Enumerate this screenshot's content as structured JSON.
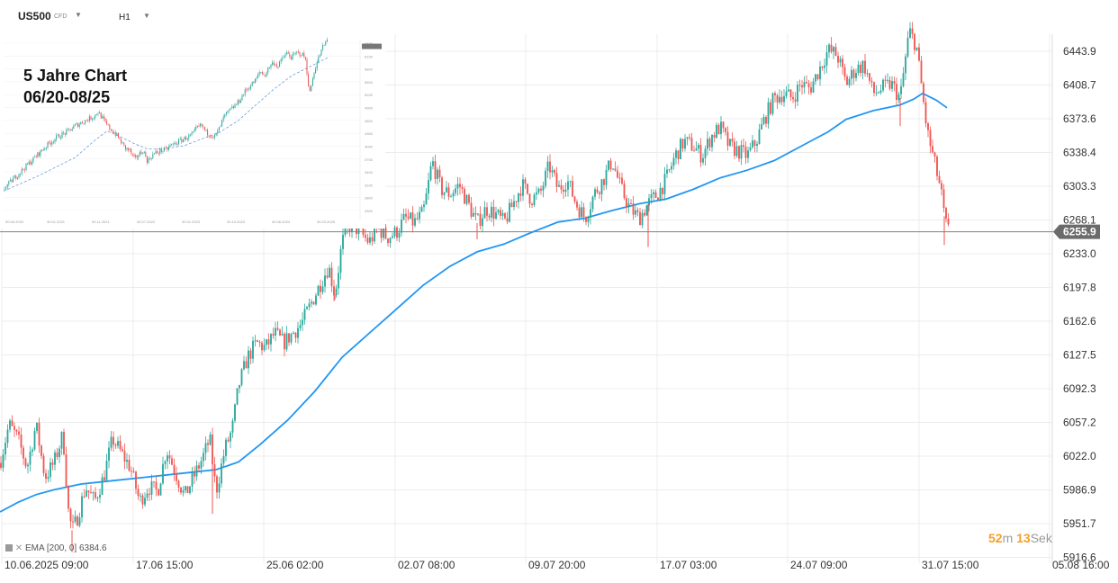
{
  "header": {
    "symbol": "US500",
    "instrument_type": "CFD",
    "timeframe": "H1"
  },
  "inset": {
    "title_line1": "5 Jahre Chart",
    "title_line2": "06/20-08/25"
  },
  "indicator_label": "EMA [200, 0] 6384.6",
  "timer": {
    "minutes": "52",
    "m_unit": "m",
    "seconds": "13",
    "s_unit": "Sek"
  },
  "colors": {
    "up": "#26a69a",
    "down": "#ef5350",
    "ema": "#2196f3",
    "price_line": "#808080",
    "price_tag": "#6b6b6b"
  },
  "chart_data": {
    "type": "candlestick",
    "title": "US500 CFD H1",
    "ylim": [
      5905,
      6482
    ],
    "y_ticks": [
      "6443.9",
      "6408.7",
      "6373.6",
      "6338.4",
      "6303.3",
      "6268.1",
      "6233.0",
      "6197.8",
      "6162.6",
      "6127.5",
      "6092.3",
      "6057.2",
      "6022.0",
      "5986.9",
      "5951.7",
      "5916.6"
    ],
    "x_tick_labels": [
      "10.06.2025  09:00",
      "17.06  15:00",
      "25.06  02:00",
      "02.07  08:00",
      "09.07  20:00",
      "17.07  03:00",
      "24.07  09:00",
      "31.07  15:00",
      "05.08  16:00"
    ],
    "current_price": 6255.9,
    "current_price_label": "6255.9",
    "close_path": [
      [
        0,
        6015
      ],
      [
        10,
        6055
      ],
      [
        20,
        6040
      ],
      [
        30,
        6010
      ],
      [
        40,
        6055
      ],
      [
        50,
        6000
      ],
      [
        60,
        6015
      ],
      [
        70,
        6045
      ],
      [
        76,
        5965
      ],
      [
        80,
        5945
      ],
      [
        85,
        5955
      ],
      [
        95,
        5990
      ],
      [
        105,
        5975
      ],
      [
        115,
        6000
      ],
      [
        125,
        6040
      ],
      [
        135,
        6025
      ],
      [
        145,
        6010
      ],
      [
        155,
        5975
      ],
      [
        165,
        5990
      ],
      [
        175,
        5985
      ],
      [
        185,
        6030
      ],
      [
        195,
        6005
      ],
      [
        205,
        5980
      ],
      [
        215,
        6000
      ],
      [
        225,
        6020
      ],
      [
        233,
        6040
      ],
      [
        240,
        5985
      ],
      [
        250,
        6030
      ],
      [
        258,
        6050
      ],
      [
        265,
        6095
      ],
      [
        275,
        6125
      ],
      [
        285,
        6140
      ],
      [
        295,
        6135
      ],
      [
        305,
        6150
      ],
      [
        315,
        6140
      ],
      [
        325,
        6150
      ],
      [
        335,
        6160
      ],
      [
        345,
        6180
      ],
      [
        355,
        6200
      ],
      [
        365,
        6220
      ],
      [
        372,
        6190
      ],
      [
        380,
        6245
      ],
      [
        390,
        6265
      ],
      [
        400,
        6255
      ],
      [
        410,
        6245
      ],
      [
        420,
        6260
      ],
      [
        430,
        6250
      ],
      [
        440,
        6255
      ],
      [
        450,
        6270
      ],
      [
        460,
        6265
      ],
      [
        470,
        6275
      ],
      [
        475,
        6300
      ],
      [
        480,
        6330
      ],
      [
        490,
        6300
      ],
      [
        500,
        6295
      ],
      [
        510,
        6305
      ],
      [
        520,
        6285
      ],
      [
        530,
        6265
      ],
      [
        540,
        6280
      ],
      [
        550,
        6275
      ],
      [
        560,
        6265
      ],
      [
        570,
        6285
      ],
      [
        580,
        6305
      ],
      [
        590,
        6290
      ],
      [
        600,
        6295
      ],
      [
        610,
        6325
      ],
      [
        620,
        6300
      ],
      [
        630,
        6310
      ],
      [
        640,
        6285
      ],
      [
        650,
        6270
      ],
      [
        660,
        6295
      ],
      [
        670,
        6310
      ],
      [
        680,
        6330
      ],
      [
        690,
        6300
      ],
      [
        700,
        6280
      ],
      [
        710,
        6270
      ],
      [
        720,
        6285
      ],
      [
        730,
        6295
      ],
      [
        740,
        6310
      ],
      [
        750,
        6335
      ],
      [
        760,
        6350
      ],
      [
        770,
        6345
      ],
      [
        780,
        6335
      ],
      [
        790,
        6355
      ],
      [
        800,
        6365
      ],
      [
        810,
        6345
      ],
      [
        820,
        6340
      ],
      [
        830,
        6335
      ],
      [
        840,
        6350
      ],
      [
        850,
        6375
      ],
      [
        860,
        6395
      ],
      [
        870,
        6400
      ],
      [
        880,
        6395
      ],
      [
        890,
        6410
      ],
      [
        900,
        6405
      ],
      [
        910,
        6425
      ],
      [
        920,
        6445
      ],
      [
        930,
        6440
      ],
      [
        940,
        6410
      ],
      [
        950,
        6425
      ],
      [
        960,
        6430
      ],
      [
        970,
        6400
      ],
      [
        980,
        6405
      ],
      [
        990,
        6410
      ],
      [
        1000,
        6395
      ],
      [
        1005,
        6430
      ],
      [
        1010,
        6465
      ],
      [
        1018,
        6450
      ],
      [
        1022,
        6420
      ],
      [
        1030,
        6360
      ],
      [
        1040,
        6320
      ],
      [
        1045,
        6300
      ],
      [
        1050,
        6265
      ],
      [
        1054,
        6256
      ]
    ],
    "ema_path": [
      [
        0,
        5964
      ],
      [
        20,
        5974
      ],
      [
        40,
        5982
      ],
      [
        60,
        5987
      ],
      [
        90,
        5993
      ],
      [
        120,
        5996
      ],
      [
        160,
        6000
      ],
      [
        200,
        6004
      ],
      [
        240,
        6008
      ],
      [
        265,
        6016
      ],
      [
        290,
        6035
      ],
      [
        320,
        6060
      ],
      [
        350,
        6090
      ],
      [
        380,
        6125
      ],
      [
        410,
        6150
      ],
      [
        440,
        6175
      ],
      [
        470,
        6200
      ],
      [
        500,
        6220
      ],
      [
        530,
        6235
      ],
      [
        560,
        6243
      ],
      [
        590,
        6255
      ],
      [
        620,
        6266
      ],
      [
        650,
        6270
      ],
      [
        680,
        6278
      ],
      [
        710,
        6285
      ],
      [
        740,
        6290
      ],
      [
        770,
        6300
      ],
      [
        800,
        6312
      ],
      [
        830,
        6320
      ],
      [
        860,
        6330
      ],
      [
        890,
        6345
      ],
      [
        920,
        6360
      ],
      [
        940,
        6373
      ],
      [
        970,
        6382
      ],
      [
        1000,
        6388
      ],
      [
        1015,
        6394
      ],
      [
        1025,
        6400
      ],
      [
        1040,
        6393
      ],
      [
        1052,
        6385
      ]
    ],
    "inset": {
      "type": "candlestick",
      "x_tick_labels": [
        "30.06.2020",
        "30.01.2021",
        "30.11.2021",
        "30.07.2022",
        "30.01.2023",
        "30.10.2023",
        "30.06.2024",
        "30.03.2025"
      ],
      "y_tick_labels": [
        "6400",
        "6100",
        "5800",
        "5500",
        "5200",
        "4900",
        "4600",
        "4300",
        "4000",
        "3700",
        "3400",
        "3100",
        "2800",
        "2500"
      ],
      "close_path": [
        [
          0,
          3100
        ],
        [
          10,
          3300
        ],
        [
          20,
          3500
        ],
        [
          30,
          3700
        ],
        [
          40,
          3900
        ],
        [
          50,
          4100
        ],
        [
          60,
          4250
        ],
        [
          70,
          4350
        ],
        [
          80,
          4500
        ],
        [
          90,
          4600
        ],
        [
          100,
          4700
        ],
        [
          105,
          4800
        ],
        [
          110,
          4650
        ],
        [
          115,
          4500
        ],
        [
          120,
          4400
        ],
        [
          125,
          4300
        ],
        [
          130,
          4150
        ],
        [
          135,
          4000
        ],
        [
          140,
          3950
        ],
        [
          145,
          3750
        ],
        [
          150,
          3850
        ],
        [
          155,
          3950
        ],
        [
          160,
          3700
        ],
        [
          165,
          3850
        ],
        [
          170,
          3900
        ],
        [
          175,
          3950
        ],
        [
          180,
          3950
        ],
        [
          185,
          4050
        ],
        [
          190,
          4100
        ],
        [
          195,
          4150
        ],
        [
          200,
          4200
        ],
        [
          210,
          4300
        ],
        [
          215,
          4450
        ],
        [
          220,
          4500
        ],
        [
          225,
          4350
        ],
        [
          230,
          4300
        ],
        [
          235,
          4250
        ],
        [
          240,
          4450
        ],
        [
          245,
          4700
        ],
        [
          250,
          4800
        ],
        [
          255,
          4900
        ],
        [
          260,
          5000
        ],
        [
          265,
          5150
        ],
        [
          270,
          5300
        ],
        [
          275,
          5400
        ],
        [
          280,
          5500
        ],
        [
          285,
          5700
        ],
        [
          290,
          5600
        ],
        [
          295,
          5800
        ],
        [
          300,
          5900
        ],
        [
          305,
          5800
        ],
        [
          310,
          6000
        ],
        [
          315,
          6100
        ],
        [
          320,
          6000
        ],
        [
          325,
          6100
        ],
        [
          330,
          6100
        ],
        [
          335,
          6000
        ],
        [
          340,
          5200
        ],
        [
          345,
          5700
        ],
        [
          350,
          6000
        ],
        [
          355,
          6250
        ],
        [
          360,
          6400
        ]
      ],
      "ema_path": [
        [
          0,
          3050
        ],
        [
          40,
          3400
        ],
        [
          80,
          3800
        ],
        [
          100,
          4150
        ],
        [
          115,
          4380
        ],
        [
          130,
          4250
        ],
        [
          145,
          4100
        ],
        [
          160,
          3980
        ],
        [
          180,
          3990
        ],
        [
          200,
          4050
        ],
        [
          220,
          4200
        ],
        [
          240,
          4350
        ],
        [
          260,
          4600
        ],
        [
          280,
          4950
        ],
        [
          300,
          5300
        ],
        [
          320,
          5600
        ],
        [
          340,
          5800
        ],
        [
          360,
          6000
        ]
      ]
    }
  }
}
